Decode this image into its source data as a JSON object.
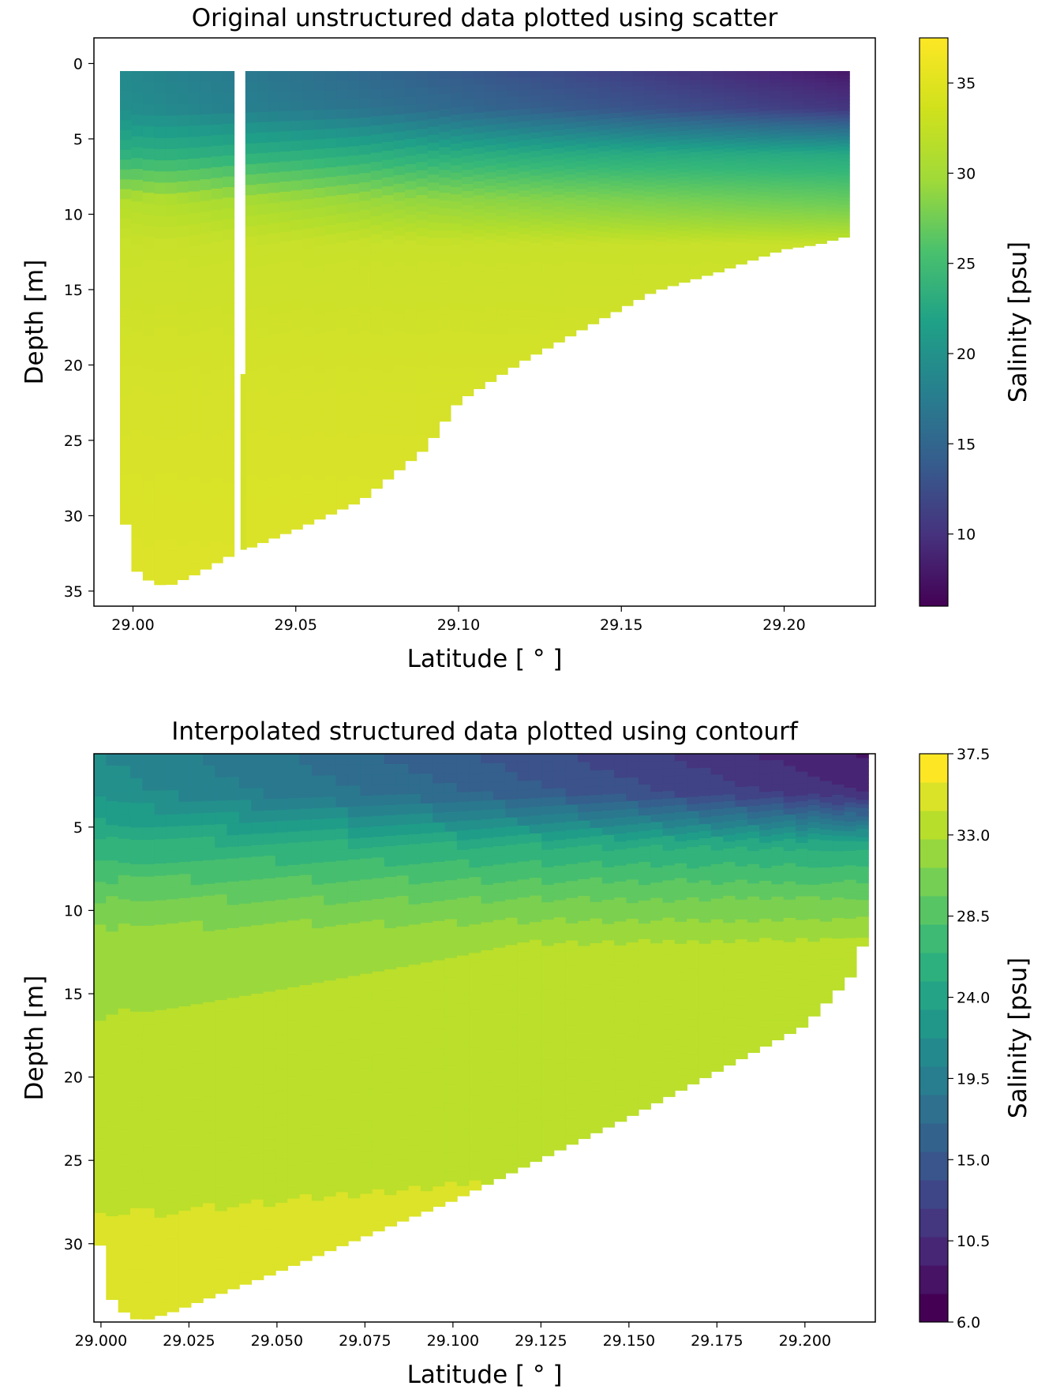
{
  "chart_data": [
    {
      "type": "scatter",
      "title": "Original unstructured data plotted using scatter",
      "xlabel": "Latitude [$^\\circ$]",
      "xlabel_display": "Latitude [ ° ]",
      "ylabel": "Depth [m]",
      "xlim": [
        28.988,
        29.228
      ],
      "ylim": [
        36,
        -1.7
      ],
      "y_inverted": true,
      "xticks": [
        29.0,
        29.05,
        29.1,
        29.15,
        29.2
      ],
      "xtick_labels": [
        "29.00",
        "29.05",
        "29.10",
        "29.15",
        "29.20"
      ],
      "yticks": [
        0,
        5,
        10,
        15,
        20,
        25,
        30,
        35
      ],
      "ytick_labels": [
        "0",
        "5",
        "10",
        "15",
        "20",
        "25",
        "30",
        "35"
      ],
      "colormap": "viridis",
      "colorbar": {
        "label": "Salinity [psu]",
        "range": [
          6.0,
          37.5
        ],
        "ticks": [
          10,
          15,
          20,
          25,
          30,
          35
        ],
        "tick_labels": [
          "10",
          "15",
          "20",
          "25",
          "30",
          "35"
        ]
      },
      "bottom_profile": {
        "lat": [
          28.996,
          28.999,
          29.005,
          29.01,
          29.02,
          29.03,
          29.05,
          29.07,
          29.09,
          29.1,
          29.12,
          29.14,
          29.16,
          29.18,
          29.2,
          29.21,
          29.22
        ],
        "depth": [
          26.7,
          33.3,
          34.3,
          34.7,
          33.8,
          32.6,
          30.9,
          29.0,
          25.5,
          22.4,
          19.7,
          17.4,
          15.1,
          13.8,
          12.3,
          12.0,
          11.4
        ]
      },
      "gap_latitude": 29.034,
      "gap_bottom_depth": 20.6,
      "salinity_layers": [
        {
          "depth": 0.5,
          "salinity_south": 21,
          "salinity_north": 8
        },
        {
          "depth": 3,
          "salinity_south": 21.5,
          "salinity_north": 11
        },
        {
          "depth": 6,
          "salinity_south": 26,
          "salinity_north": 25
        },
        {
          "depth": 9,
          "salinity_south": 34,
          "salinity_north": 30
        },
        {
          "depth": 12,
          "salinity_south": 35,
          "salinity_north": 35
        },
        {
          "depth": 20,
          "salinity_south": 35.5,
          "salinity_north": 35.5
        },
        {
          "depth": 35,
          "salinity_south": 36,
          "salinity_north": 36
        }
      ]
    },
    {
      "type": "contourf",
      "title": "Interpolated structured data plotted using contourf",
      "xlabel": "Latitude [$^\\circ$]",
      "xlabel_display": "Latitude [ ° ]",
      "ylabel": "Depth [m]",
      "xlim": [
        28.998,
        29.22
      ],
      "ylim": [
        34.7,
        0.6
      ],
      "y_inverted": true,
      "xticks": [
        29.0,
        29.025,
        29.05,
        29.075,
        29.1,
        29.125,
        29.15,
        29.175,
        29.2
      ],
      "xtick_labels": [
        "29.000",
        "29.025",
        "29.050",
        "29.075",
        "29.100",
        "29.125",
        "29.150",
        "29.175",
        "29.200"
      ],
      "yticks": [
        5,
        10,
        15,
        20,
        25,
        30
      ],
      "ytick_labels": [
        "5",
        "10",
        "15",
        "20",
        "25",
        "30"
      ],
      "colormap": "viridis",
      "colorbar": {
        "label": "Salinity [psu]",
        "range": [
          6.0,
          37.5
        ],
        "levels": 21,
        "ticks": [
          6.0,
          10.5,
          15.0,
          19.5,
          24.0,
          28.5,
          33.0,
          37.5
        ],
        "tick_labels": [
          "6.0",
          "10.5",
          "15.0",
          "19.5",
          "24.0",
          "28.5",
          "33.0",
          "37.5"
        ]
      },
      "bottom_profile": {
        "lat": [
          28.998,
          29.0,
          29.003,
          29.008,
          29.012,
          29.02,
          29.05,
          29.1,
          29.15,
          29.2,
          29.215,
          29.218
        ],
        "depth": [
          28.1,
          30.4,
          33.3,
          34.4,
          34.6,
          34.1,
          31.7,
          27.4,
          22.4,
          16.9,
          13.5,
          10.3
        ]
      },
      "salinity_layers": [
        {
          "depth": 0.6,
          "salinity_south": 21,
          "salinity_north": 8
        },
        {
          "depth": 3,
          "salinity_south": 22,
          "salinity_north": 10
        },
        {
          "depth": 6,
          "salinity_south": 26,
          "salinity_north": 25
        },
        {
          "depth": 9,
          "salinity_south": 30,
          "salinity_north": 30
        },
        {
          "depth": 12,
          "salinity_south": 33,
          "salinity_north": 34
        },
        {
          "depth": 20,
          "salinity_south": 34,
          "salinity_north": 35
        },
        {
          "depth": 34.7,
          "salinity_south": 36,
          "salinity_north": 36
        }
      ]
    }
  ]
}
